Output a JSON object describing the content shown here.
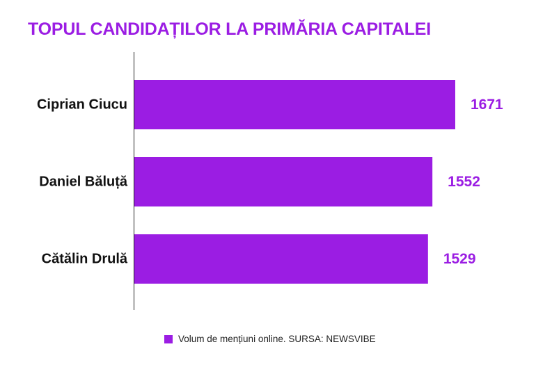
{
  "title": "TOPUL CANDIDAȚILOR LA PRIMĂRIA CAPITALEI",
  "chart_data": {
    "type": "bar",
    "orientation": "horizontal",
    "categories": [
      "Ciprian Ciucu",
      "Daniel Băluță",
      "Cătălin Drulă"
    ],
    "series": [
      {
        "name": "Volum de mențiuni online. SURSA: NEWSVIBE",
        "values": [
          1671,
          1552,
          1529
        ],
        "color": "#9b1de3"
      }
    ],
    "data_labels": [
      "1671",
      "1552",
      "1529"
    ],
    "xlim": [
      0,
      1671
    ],
    "grid": false,
    "legend_position": "bottom"
  }
}
